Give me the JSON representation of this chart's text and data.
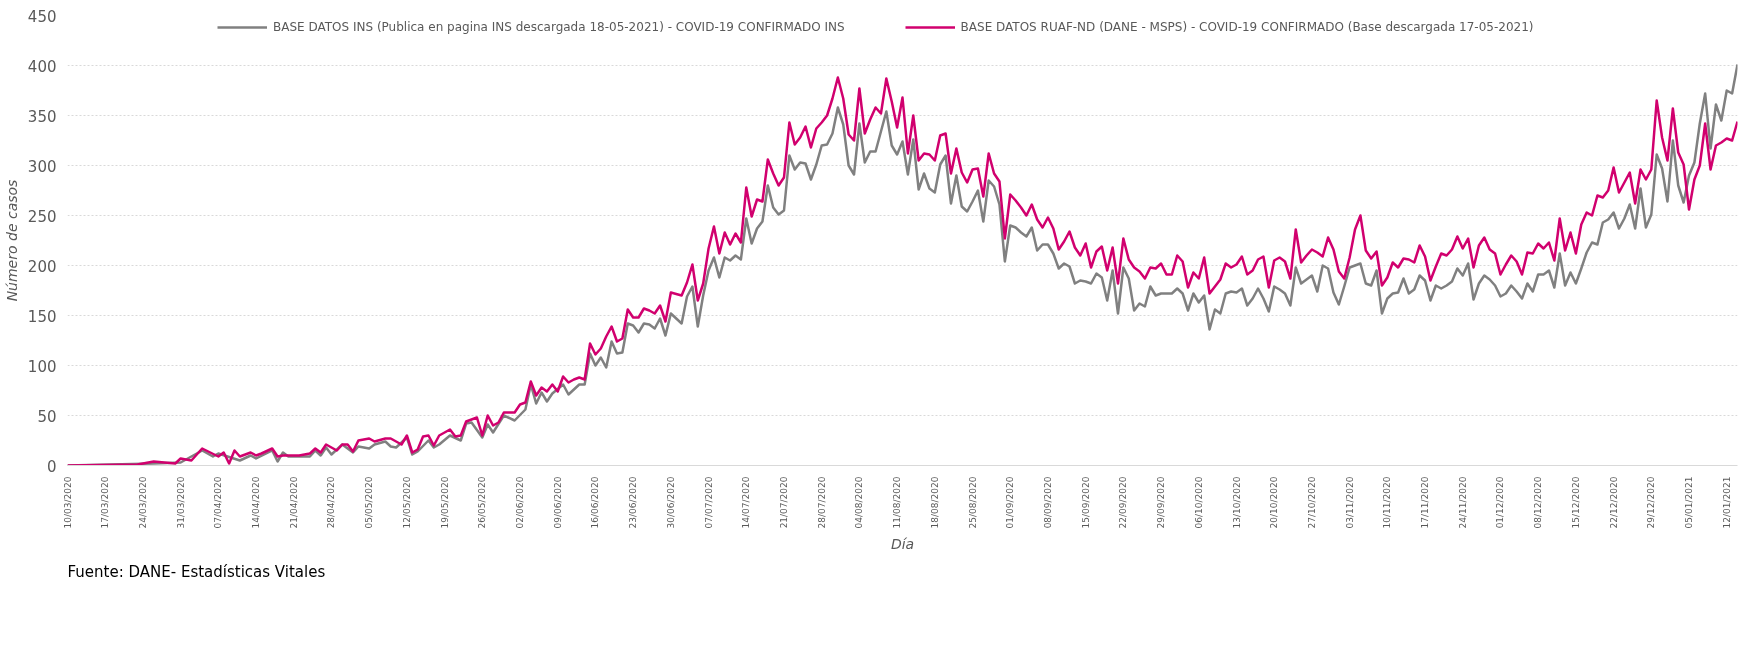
{
  "chart_data": {
    "type": "line",
    "xlabel": "Día",
    "ylabel": "Número de casos",
    "annotations": [
      "Fuente: DANE- Estadísticas Vitales"
    ],
    "xlim": [
      "2020-03-10",
      "2021-01-14"
    ],
    "xticks": [
      {
        "value": "2020-03-10",
        "label": "10/03/2020"
      },
      {
        "value": "2020-03-17",
        "label": "17/03/2020"
      },
      {
        "value": "2020-03-24",
        "label": "24/03/2020"
      },
      {
        "value": "2020-03-31",
        "label": "31/03/2020"
      },
      {
        "value": "2020-04-07",
        "label": "07/04/2020"
      },
      {
        "value": "2020-04-14",
        "label": "14/04/2020"
      },
      {
        "value": "2020-04-21",
        "label": "21/04/2020"
      },
      {
        "value": "2020-04-28",
        "label": "28/04/2020"
      },
      {
        "value": "2020-05-05",
        "label": "05/05/2020"
      },
      {
        "value": "2020-05-12",
        "label": "12/05/2020"
      },
      {
        "value": "2020-05-19",
        "label": "19/05/2020"
      },
      {
        "value": "2020-05-26",
        "label": "26/05/2020"
      },
      {
        "value": "2020-06-02",
        "label": "02/06/2020"
      },
      {
        "value": "2020-06-09",
        "label": "09/06/2020"
      },
      {
        "value": "2020-06-16",
        "label": "16/06/2020"
      },
      {
        "value": "2020-06-23",
        "label": "23/06/2020"
      },
      {
        "value": "2020-06-30",
        "label": "30/06/2020"
      },
      {
        "value": "2020-07-07",
        "label": "07/07/2020"
      },
      {
        "value": "2020-07-14",
        "label": "14/07/2020"
      },
      {
        "value": "2020-07-21",
        "label": "21/07/2020"
      },
      {
        "value": "2020-07-28",
        "label": "28/07/2020"
      },
      {
        "value": "2020-08-04",
        "label": "04/08/2020"
      },
      {
        "value": "2020-08-11",
        "label": "11/08/2020"
      },
      {
        "value": "2020-08-18",
        "label": "18/08/2020"
      },
      {
        "value": "2020-08-25",
        "label": "25/08/2020"
      },
      {
        "value": "2020-09-01",
        "label": "01/09/2020"
      },
      {
        "value": "2020-09-08",
        "label": "08/09/2020"
      },
      {
        "value": "2020-09-15",
        "label": "15/09/2020"
      },
      {
        "value": "2020-09-22",
        "label": "22/09/2020"
      },
      {
        "value": "2020-09-29",
        "label": "29/09/2020"
      },
      {
        "value": "2020-10-06",
        "label": "06/10/2020"
      },
      {
        "value": "2020-10-13",
        "label": "13/10/2020"
      },
      {
        "value": "2020-10-20",
        "label": "20/10/2020"
      },
      {
        "value": "2020-10-27",
        "label": "27/10/2020"
      },
      {
        "value": "2020-11-03",
        "label": "03/11/2020"
      },
      {
        "value": "2020-11-10",
        "label": "10/11/2020"
      },
      {
        "value": "2020-11-17",
        "label": "17/11/2020"
      },
      {
        "value": "2020-11-24",
        "label": "24/11/2020"
      },
      {
        "value": "2020-12-01",
        "label": "01/12/2020"
      },
      {
        "value": "2020-12-08",
        "label": "08/12/2020"
      },
      {
        "value": "2020-12-15",
        "label": "15/12/2020"
      },
      {
        "value": "2020-12-22",
        "label": "22/12/2020"
      },
      {
        "value": "2020-12-29",
        "label": "29/12/2020"
      },
      {
        "value": "2021-01-05",
        "label": "05/01/2021"
      },
      {
        "value": "2021-01-12",
        "label": "12/01/2021"
      }
    ],
    "ylim": [
      0,
      450
    ],
    "yticks": [
      0,
      50,
      100,
      150,
      200,
      250,
      300,
      350,
      400,
      450
    ],
    "grid": "y",
    "legend": "top",
    "marker": "none",
    "line_style": "solid",
    "series": [
      {
        "name": "BASE DATOS INS (Publica en pagina INS descargada 18-05-2021) - COVID-19 CONFIRMADO INS",
        "color": "#808080",
        "x": [
          "2020-03-10",
          "2020-03-26",
          "2020-03-31",
          "2020-04-04",
          "2020-04-06",
          "2020-04-07",
          "2020-04-11",
          "2020-04-13",
          "2020-04-14",
          "2020-04-17",
          "2020-04-18",
          "2020-04-19",
          "2020-04-20",
          "2020-04-24",
          "2020-04-25",
          "2020-04-26",
          "2020-04-27",
          "2020-04-28",
          "2020-04-30",
          "2020-05-02",
          "2020-05-03",
          "2020-05-05",
          "2020-05-06",
          "2020-05-08",
          "2020-05-09",
          "2020-05-10",
          "2020-05-12",
          "2020-05-13",
          "2020-05-14",
          "2020-05-16",
          "2020-05-17",
          "2020-05-18",
          "2020-05-20",
          "2020-05-22",
          "2020-05-23",
          "2020-05-24",
          "2020-05-26",
          "2020-05-27",
          "2020-05-28",
          "2020-05-30",
          "2020-06-01",
          "2020-06-03",
          "2020-06-04",
          "2020-06-05",
          "2020-06-06",
          "2020-06-07",
          "2020-06-08",
          "2020-06-10",
          "2020-06-11",
          "2020-06-13",
          "2020-06-14",
          "2020-06-15",
          "2020-06-16",
          "2020-06-17",
          "2020-06-18",
          "2020-06-19",
          "2020-06-20",
          "2020-06-21",
          "2020-06-22",
          "2020-06-23",
          "2020-06-24",
          "2020-06-25",
          "2020-06-26",
          "2020-06-27",
          "2020-06-28",
          "2020-06-29",
          "2020-06-30",
          "2020-07-02",
          "2020-07-03",
          "2020-07-04",
          "2020-07-05",
          "2020-07-06",
          "2020-07-07",
          "2020-07-08",
          "2020-07-09",
          "2020-07-10",
          "2020-07-11",
          "2020-07-12",
          "2020-07-13",
          "2020-07-14",
          "2020-07-15",
          "2020-07-16",
          "2020-07-17",
          "2020-07-18",
          "2020-07-19",
          "2020-07-20",
          "2020-07-21",
          "2020-07-22",
          "2020-07-23",
          "2020-07-24",
          "2020-07-25",
          "2020-07-26",
          "2020-07-27",
          "2020-07-28",
          "2020-07-29",
          "2020-07-30",
          "2020-07-31",
          "2020-08-01",
          "2020-08-02",
          "2020-08-03",
          "2020-08-04",
          "2020-08-05",
          "2020-08-06",
          "2020-08-07",
          "2020-08-08",
          "2020-08-09",
          "2020-08-10",
          "2020-08-11",
          "2020-08-12",
          "2020-08-13",
          "2020-08-14",
          "2020-08-15",
          "2020-08-16",
          "2020-08-17",
          "2020-08-18",
          "2020-08-19",
          "2020-08-20",
          "2020-08-21",
          "2020-08-22",
          "2020-08-23",
          "2020-08-24",
          "2020-08-25",
          "2020-08-26",
          "2020-08-27",
          "2020-08-28",
          "2020-08-29",
          "2020-08-30",
          "2020-08-31",
          "2020-09-01",
          "2020-09-02",
          "2020-09-03",
          "2020-09-04",
          "2020-09-05",
          "2020-09-06",
          "2020-09-07",
          "2020-09-08",
          "2020-09-09",
          "2020-09-10",
          "2020-09-11",
          "2020-09-12",
          "2020-09-13",
          "2020-09-14",
          "2020-09-15",
          "2020-09-16",
          "2020-09-17",
          "2020-09-18",
          "2020-09-19",
          "2020-09-20",
          "2020-09-21",
          "2020-09-22",
          "2020-09-23",
          "2020-09-24",
          "2020-09-25",
          "2020-09-26",
          "2020-09-27",
          "2020-09-28",
          "2020-09-29",
          "2020-09-30",
          "2020-10-01",
          "2020-10-02",
          "2020-10-03",
          "2020-10-04",
          "2020-10-05",
          "2020-10-06",
          "2020-10-07",
          "2020-10-08",
          "2020-10-09",
          "2020-10-10",
          "2020-10-11",
          "2020-10-12",
          "2020-10-13",
          "2020-10-14",
          "2020-10-15",
          "2020-10-16",
          "2020-10-17",
          "2020-10-18",
          "2020-10-19",
          "2020-10-20",
          "2020-10-21",
          "2020-10-22",
          "2020-10-23",
          "2020-10-24",
          "2020-10-25",
          "2020-10-26",
          "2020-10-27",
          "2020-10-28",
          "2020-10-29",
          "2020-10-30",
          "2020-10-31",
          "2020-11-01",
          "2020-11-02",
          "2020-11-03",
          "2020-11-04",
          "2020-11-05",
          "2020-11-06",
          "2020-11-07",
          "2020-11-08",
          "2020-11-09",
          "2020-11-10",
          "2020-11-11",
          "2020-11-12",
          "2020-11-13",
          "2020-11-14",
          "2020-11-15",
          "2020-11-16",
          "2020-11-17",
          "2020-11-18",
          "2020-11-19",
          "2020-11-20",
          "2020-11-21",
          "2020-11-22",
          "2020-11-23",
          "2020-11-24",
          "2020-11-25",
          "2020-11-26",
          "2020-11-27",
          "2020-11-28",
          "2020-11-29",
          "2020-11-30",
          "2020-12-01",
          "2020-12-02",
          "2020-12-03",
          "2020-12-04",
          "2020-12-05",
          "2020-12-06",
          "2020-12-07",
          "2020-12-08",
          "2020-12-09",
          "2020-12-10",
          "2020-12-11",
          "2020-12-12",
          "2020-12-13",
          "2020-12-14",
          "2020-12-15",
          "2020-12-16",
          "2020-12-17",
          "2020-12-18",
          "2020-12-19",
          "2020-12-20",
          "2020-12-21",
          "2020-12-22",
          "2020-12-23",
          "2020-12-24",
          "2020-12-25",
          "2020-12-26",
          "2020-12-27",
          "2020-12-28",
          "2020-12-29",
          "2020-12-30",
          "2020-12-31",
          "2021-01-01",
          "2021-01-02",
          "2021-01-03",
          "2021-01-04",
          "2021-01-05",
          "2021-01-06",
          "2021-01-07",
          "2021-01-08",
          "2021-01-09",
          "2021-01-10",
          "2021-01-11",
          "2021-01-12",
          "2021-01-13",
          "2021-01-14"
        ],
        "values": [
          0,
          2,
          3,
          15,
          9,
          12,
          5,
          10,
          7,
          15,
          4,
          13,
          9,
          9,
          15,
          10,
          18,
          11,
          21,
          13,
          19,
          17,
          21,
          24,
          19,
          18,
          28,
          11,
          14,
          25,
          18,
          21,
          30,
          25,
          42,
          43,
          28,
          41,
          33,
          50,
          45,
          56,
          81,
          62,
          73,
          64,
          72,
          81,
          71,
          81,
          81,
          112,
          100,
          108,
          98,
          124,
          112,
          113,
          142,
          140,
          133,
          142,
          141,
          137,
          147,
          130,
          152,
          142,
          169,
          179,
          139,
          170,
          195,
          208,
          188,
          208,
          205,
          210,
          206,
          247,
          222,
          237,
          244,
          280,
          258,
          251,
          255,
          310,
          296,
          303,
          302,
          286,
          301,
          320,
          321,
          332,
          358,
          341,
          300,
          291,
          342,
          303,
          314,
          314,
          334,
          354,
          320,
          311,
          324,
          291,
          326,
          276,
          292,
          277,
          273,
          301,
          310,
          262,
          290,
          259,
          254,
          264,
          275,
          244,
          285,
          279,
          261,
          204,
          240,
          238,
          233,
          229,
          238,
          215,
          221,
          221,
          212,
          197,
          202,
          199,
          182,
          185,
          184,
          182,
          192,
          188,
          165,
          195,
          152,
          198,
          187,
          155,
          162,
          159,
          179,
          170,
          172,
          172,
          172,
          177,
          172,
          155,
          172,
          163,
          170,
          136,
          156,
          152,
          172,
          174,
          173,
          177,
          160,
          167,
          177,
          167,
          154,
          179,
          176,
          172,
          160,
          198,
          182,
          186,
          190,
          174,
          200,
          197,
          173,
          161,
          179,
          198,
          200,
          202,
          182,
          180,
          195,
          152,
          167,
          172,
          173,
          187,
          172,
          176,
          190,
          185,
          165,
          180,
          177,
          180,
          184,
          197,
          190,
          202,
          166,
          182,
          190,
          186,
          180,
          169,
          172,
          180,
          174,
          167,
          182,
          174,
          191,
          191,
          195,
          178,
          212,
          180,
          193,
          182,
          197,
          213,
          223,
          221,
          243,
          246,
          253,
          237,
          247,
          261,
          237,
          277,
          238,
          251,
          311,
          297,
          264,
          325,
          280,
          263,
          290,
          303,
          342,
          372,
          317,
          361,
          345,
          375,
          372,
          401
        ]
      },
      {
        "name": "BASE DATOS RUAF-ND (DANE - MSPS) - COVID-19 CONFIRMADO (Base descargada 17-05-2021)",
        "color": "#d1006e",
        "x": [
          "2020-03-10",
          "2020-03-23",
          "2020-03-26",
          "2020-03-30",
          "2020-03-31",
          "2020-04-02",
          "2020-04-04",
          "2020-04-07",
          "2020-04-08",
          "2020-04-09",
          "2020-04-10",
          "2020-04-11",
          "2020-04-13",
          "2020-04-14",
          "2020-04-15",
          "2020-04-17",
          "2020-04-18",
          "2020-04-19",
          "2020-04-22",
          "2020-04-24",
          "2020-04-25",
          "2020-04-26",
          "2020-04-27",
          "2020-04-29",
          "2020-04-30",
          "2020-05-01",
          "2020-05-02",
          "2020-05-03",
          "2020-05-05",
          "2020-05-06",
          "2020-05-08",
          "2020-05-09",
          "2020-05-11",
          "2020-05-12",
          "2020-05-13",
          "2020-05-14",
          "2020-05-15",
          "2020-05-16",
          "2020-05-17",
          "2020-05-18",
          "2020-05-20",
          "2020-05-21",
          "2020-05-22",
          "2020-05-23",
          "2020-05-25",
          "2020-05-26",
          "2020-05-27",
          "2020-05-28",
          "2020-05-29",
          "2020-05-30",
          "2020-06-01",
          "2020-06-02",
          "2020-06-03",
          "2020-06-04",
          "2020-06-05",
          "2020-06-06",
          "2020-06-07",
          "2020-06-08",
          "2020-06-09",
          "2020-06-10",
          "2020-06-11",
          "2020-06-12",
          "2020-06-13",
          "2020-06-14",
          "2020-06-15",
          "2020-06-16",
          "2020-06-17",
          "2020-06-18",
          "2020-06-19",
          "2020-06-20",
          "2020-06-21",
          "2020-06-22",
          "2020-06-23",
          "2020-06-24",
          "2020-06-25",
          "2020-06-26",
          "2020-06-27",
          "2020-06-28",
          "2020-06-29",
          "2020-06-30",
          "2020-07-02",
          "2020-07-03",
          "2020-07-04",
          "2020-07-05",
          "2020-07-06",
          "2020-07-07",
          "2020-07-08",
          "2020-07-09",
          "2020-07-10",
          "2020-07-11",
          "2020-07-12",
          "2020-07-13",
          "2020-07-14",
          "2020-07-15",
          "2020-07-16",
          "2020-07-17",
          "2020-07-18",
          "2020-07-19",
          "2020-07-20",
          "2020-07-21",
          "2020-07-22",
          "2020-07-23",
          "2020-07-24",
          "2020-07-25",
          "2020-07-26",
          "2020-07-27",
          "2020-07-28",
          "2020-07-29",
          "2020-07-30",
          "2020-07-31",
          "2020-08-01",
          "2020-08-02",
          "2020-08-03",
          "2020-08-04",
          "2020-08-05",
          "2020-08-06",
          "2020-08-07",
          "2020-08-08",
          "2020-08-09",
          "2020-08-10",
          "2020-08-11",
          "2020-08-12",
          "2020-08-13",
          "2020-08-14",
          "2020-08-15",
          "2020-08-16",
          "2020-08-17",
          "2020-08-18",
          "2020-08-19",
          "2020-08-20",
          "2020-08-21",
          "2020-08-22",
          "2020-08-23",
          "2020-08-24",
          "2020-08-25",
          "2020-08-26",
          "2020-08-27",
          "2020-08-28",
          "2020-08-29",
          "2020-08-30",
          "2020-08-31",
          "2020-09-01",
          "2020-09-02",
          "2020-09-03",
          "2020-09-04",
          "2020-09-05",
          "2020-09-06",
          "2020-09-07",
          "2020-09-08",
          "2020-09-09",
          "2020-09-10",
          "2020-09-11",
          "2020-09-12",
          "2020-09-13",
          "2020-09-14",
          "2020-09-15",
          "2020-09-16",
          "2020-09-17",
          "2020-09-18",
          "2020-09-19",
          "2020-09-20",
          "2020-09-21",
          "2020-09-22",
          "2020-09-23",
          "2020-09-24",
          "2020-09-25",
          "2020-09-26",
          "2020-09-27",
          "2020-09-28",
          "2020-09-29",
          "2020-09-30",
          "2020-10-01",
          "2020-10-02",
          "2020-10-03",
          "2020-10-04",
          "2020-10-05",
          "2020-10-06",
          "2020-10-07",
          "2020-10-08",
          "2020-10-09",
          "2020-10-10",
          "2020-10-11",
          "2020-10-12",
          "2020-10-13",
          "2020-10-14",
          "2020-10-15",
          "2020-10-16",
          "2020-10-17",
          "2020-10-18",
          "2020-10-19",
          "2020-10-20",
          "2020-10-21",
          "2020-10-22",
          "2020-10-23",
          "2020-10-24",
          "2020-10-25",
          "2020-10-26",
          "2020-10-27",
          "2020-10-28",
          "2020-10-29",
          "2020-10-30",
          "2020-10-31",
          "2020-11-01",
          "2020-11-02",
          "2020-11-03",
          "2020-11-04",
          "2020-11-05",
          "2020-11-06",
          "2020-11-07",
          "2020-11-08",
          "2020-11-09",
          "2020-11-10",
          "2020-11-11",
          "2020-11-12",
          "2020-11-13",
          "2020-11-14",
          "2020-11-15",
          "2020-11-16",
          "2020-11-17",
          "2020-11-18",
          "2020-11-19",
          "2020-11-20",
          "2020-11-21",
          "2020-11-22",
          "2020-11-23",
          "2020-11-24",
          "2020-11-25",
          "2020-11-26",
          "2020-11-27",
          "2020-11-28",
          "2020-11-29",
          "2020-11-30",
          "2020-12-01",
          "2020-12-02",
          "2020-12-03",
          "2020-12-04",
          "2020-12-05",
          "2020-12-06",
          "2020-12-07",
          "2020-12-08",
          "2020-12-09",
          "2020-12-10",
          "2020-12-11",
          "2020-12-12",
          "2020-12-13",
          "2020-12-14",
          "2020-12-15",
          "2020-12-16",
          "2020-12-17",
          "2020-12-18",
          "2020-12-19",
          "2020-12-20",
          "2020-12-21",
          "2020-12-22",
          "2020-12-23",
          "2020-12-24",
          "2020-12-25",
          "2020-12-26",
          "2020-12-27",
          "2020-12-28",
          "2020-12-29",
          "2020-12-30",
          "2020-12-31",
          "2021-01-01",
          "2021-01-02",
          "2021-01-03",
          "2021-01-04",
          "2021-01-05",
          "2021-01-06",
          "2021-01-07",
          "2021-01-08",
          "2021-01-09",
          "2021-01-10",
          "2021-01-11",
          "2021-01-12",
          "2021-01-13",
          "2021-01-14"
        ],
        "values": [
          0,
          1,
          4,
          2,
          7,
          5,
          17,
          9,
          13,
          2,
          15,
          9,
          13,
          10,
          12,
          17,
          9,
          10,
          10,
          12,
          17,
          13,
          21,
          15,
          21,
          21,
          14,
          25,
          27,
          24,
          27,
          27,
          21,
          30,
          13,
          16,
          29,
          30,
          20,
          30,
          36,
          29,
          30,
          44,
          48,
          30,
          50,
          40,
          43,
          53,
          53,
          61,
          63,
          84,
          70,
          78,
          74,
          81,
          74,
          89,
          83,
          86,
          88,
          86,
          122,
          111,
          117,
          129,
          139,
          124,
          127,
          156,
          148,
          148,
          157,
          155,
          152,
          160,
          144,
          173,
          170,
          183,
          201,
          165,
          182,
          217,
          239,
          212,
          233,
          221,
          232,
          223,
          278,
          249,
          266,
          264,
          306,
          292,
          280,
          288,
          343,
          321,
          328,
          339,
          318,
          337,
          343,
          350,
          367,
          388,
          367,
          331,
          325,
          377,
          332,
          346,
          358,
          352,
          387,
          364,
          338,
          368,
          312,
          350,
          305,
          312,
          311,
          305,
          330,
          332,
          292,
          317,
          293,
          283,
          296,
          297,
          269,
          312,
          292,
          284,
          227,
          271,
          265,
          258,
          250,
          261,
          246,
          238,
          248,
          237,
          216,
          224,
          234,
          218,
          210,
          222,
          198,
          214,
          219,
          195,
          218,
          182,
          227,
          206,
          198,
          194,
          187,
          198,
          197,
          202,
          191,
          191,
          210,
          204,
          178,
          193,
          187,
          208,
          172,
          179,
          186,
          202,
          198,
          201,
          209,
          191,
          195,
          206,
          209,
          178,
          205,
          208,
          204,
          187,
          236,
          203,
          210,
          216,
          213,
          209,
          228,
          216,
          194,
          187,
          208,
          236,
          250,
          215,
          207,
          214,
          180,
          188,
          203,
          198,
          207,
          206,
          203,
          220,
          209,
          185,
          199,
          212,
          210,
          216,
          229,
          217,
          227,
          198,
          220,
          228,
          216,
          212,
          191,
          201,
          210,
          204,
          191,
          213,
          212,
          222,
          217,
          223,
          205,
          247,
          215,
          233,
          212,
          241,
          253,
          250,
          270,
          268,
          275,
          298,
          273,
          283,
          293,
          262,
          296,
          286,
          296,
          365,
          328,
          305,
          357,
          313,
          301,
          256,
          286,
          300,
          342,
          296,
          320,
          323,
          327,
          325,
          344
        ]
      }
    ]
  }
}
